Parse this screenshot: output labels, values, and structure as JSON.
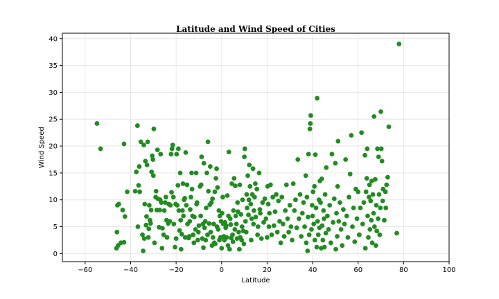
{
  "chart_data": {
    "type": "scatter",
    "title": "Latitude and Wind Speed of Cities",
    "xlabel": "Latitude",
    "ylabel": "Wind Speed",
    "xlim": [
      -70,
      100
    ],
    "ylim": [
      -1.5,
      41
    ],
    "xticks": [
      -60,
      -40,
      -20,
      0,
      20,
      40,
      60,
      80,
      100
    ],
    "yticks": [
      0,
      5,
      10,
      15,
      20,
      25,
      30,
      35,
      40
    ],
    "grid": true,
    "marker_color": "#228b22",
    "points": [
      [
        -54.8,
        24.2
      ],
      [
        -53.2,
        19.5
      ],
      [
        -46.2,
        1.0
      ],
      [
        -45.5,
        1.5
      ],
      [
        -46.0,
        4.0
      ],
      [
        -45.8,
        9.0
      ],
      [
        -45.2,
        9.2
      ],
      [
        -44.3,
        2.0
      ],
      [
        -43.5,
        8.1
      ],
      [
        -42.9,
        20.4
      ],
      [
        -42.5,
        6.9
      ],
      [
        -42.9,
        2.1
      ],
      [
        -41.5,
        11.5
      ],
      [
        -38.0,
        11.6
      ],
      [
        -37.5,
        15.2
      ],
      [
        -37.0,
        23.8
      ],
      [
        -36.8,
        5.0
      ],
      [
        -36.5,
        12.7
      ],
      [
        -36.2,
        16.2
      ],
      [
        -36.0,
        11.5
      ],
      [
        -35.5,
        20.8
      ],
      [
        -34.8,
        3.5
      ],
      [
        -34.5,
        0.5
      ],
      [
        -34.2,
        20.2
      ],
      [
        -34.0,
        2.8
      ],
      [
        -33.8,
        9.2
      ],
      [
        -33.5,
        17.2
      ],
      [
        -33.2,
        5.3
      ],
      [
        -33.0,
        6.9
      ],
      [
        -32.8,
        16.5
      ],
      [
        -32.5,
        20.8
      ],
      [
        -32.2,
        3.0
      ],
      [
        -32.0,
        4.6
      ],
      [
        -31.8,
        9.0
      ],
      [
        -31.5,
        6.2
      ],
      [
        -31.2,
        5.6
      ],
      [
        -31.0,
        8.1
      ],
      [
        -30.8,
        15.2
      ],
      [
        -30.5,
        18.2
      ],
      [
        -30.2,
        17.5
      ],
      [
        -30.0,
        14.5
      ],
      [
        -29.8,
        23.2
      ],
      [
        -29.5,
        2.0
      ],
      [
        -29.0,
        10.5
      ],
      [
        -28.8,
        11.6
      ],
      [
        -28.5,
        8.1
      ],
      [
        -28.2,
        19.3
      ],
      [
        -28.0,
        10.2
      ],
      [
        -27.5,
        4.9
      ],
      [
        -27.2,
        8.1
      ],
      [
        -27.0,
        10.0
      ],
      [
        -26.8,
        18.5
      ],
      [
        -26.5,
        9.5
      ],
      [
        -26.2,
        1.0
      ],
      [
        -26.0,
        4.7
      ],
      [
        -25.5,
        3.5
      ],
      [
        -25.2,
        8.0
      ],
      [
        -24.8,
        9.5
      ],
      [
        -24.5,
        10.5
      ],
      [
        -24.2,
        6.2
      ],
      [
        -24.0,
        3.0
      ],
      [
        -23.5,
        5.6
      ],
      [
        -23.2,
        9.2
      ],
      [
        -22.8,
        6.0
      ],
      [
        -22.5,
        9.0
      ],
      [
        -22.2,
        18.5
      ],
      [
        -22.0,
        11.4
      ],
      [
        -21.8,
        19.5
      ],
      [
        -21.5,
        20.2
      ],
      [
        -21.2,
        10.5
      ],
      [
        -21.0,
        5.5
      ],
      [
        -20.5,
        1.2
      ],
      [
        -20.2,
        9.2
      ],
      [
        -20.0,
        2.8
      ],
      [
        -19.8,
        18.5
      ],
      [
        -19.5,
        9.0
      ],
      [
        -19.2,
        12.7
      ],
      [
        -19.0,
        19.5
      ],
      [
        -18.8,
        8.0
      ],
      [
        -18.5,
        4.3
      ],
      [
        -18.2,
        15.0
      ],
      [
        -18.0,
        6.2
      ],
      [
        -17.8,
        0.8
      ],
      [
        -17.5,
        3.6
      ],
      [
        -17.2,
        8.0
      ],
      [
        -17.0,
        13.0
      ],
      [
        -16.8,
        7.0
      ],
      [
        -16.5,
        10.0
      ],
      [
        -16.2,
        10.3
      ],
      [
        -16.0,
        3.0
      ],
      [
        -15.8,
        18.8
      ],
      [
        -15.5,
        9.0
      ],
      [
        -15.2,
        12.8
      ],
      [
        -15.0,
        5.5
      ],
      [
        -14.5,
        2.9
      ],
      [
        -14.2,
        3.2
      ],
      [
        -14.0,
        6.0
      ],
      [
        -13.8,
        8.2
      ],
      [
        -13.5,
        10.5
      ],
      [
        -13.2,
        15.0
      ],
      [
        -13.0,
        12.0
      ],
      [
        -12.8,
        7.0
      ],
      [
        -12.5,
        3.5
      ],
      [
        -12.2,
        2.0
      ],
      [
        -12.0,
        6.8
      ],
      [
        -11.5,
        4.5
      ],
      [
        -11.2,
        15.0
      ],
      [
        -11.0,
        9.2
      ],
      [
        -10.8,
        9.5
      ],
      [
        -10.5,
        2.5
      ],
      [
        -10.2,
        4.0
      ],
      [
        -10.0,
        5.2
      ],
      [
        -9.5,
        12.5
      ],
      [
        -9.2,
        7.0
      ],
      [
        -9.0,
        12.8
      ],
      [
        -8.8,
        18.0
      ],
      [
        -8.5,
        2.8
      ],
      [
        -8.2,
        5.5
      ],
      [
        -8.0,
        1.1
      ],
      [
        -7.8,
        16.8
      ],
      [
        -7.5,
        4.8
      ],
      [
        -7.2,
        6.0
      ],
      [
        -7.0,
        2.5
      ],
      [
        -6.8,
        8.5
      ],
      [
        -6.5,
        15.0
      ],
      [
        -6.2,
        3.5
      ],
      [
        -6.0,
        20.8
      ],
      [
        -5.8,
        11.6
      ],
      [
        -5.5,
        5.6
      ],
      [
        -5.2,
        9.1
      ],
      [
        -5.0,
        16.2
      ],
      [
        -4.8,
        4.0
      ],
      [
        -4.5,
        9.5
      ],
      [
        -4.2,
        1.5
      ],
      [
        -4.0,
        10.2
      ],
      [
        -3.8,
        3.0
      ],
      [
        -3.5,
        5.5
      ],
      [
        -3.2,
        2.0
      ],
      [
        -3.0,
        11.5
      ],
      [
        -2.8,
        1.8
      ],
      [
        -2.5,
        14.0
      ],
      [
        -2.2,
        15.8
      ],
      [
        -2.0,
        5.0
      ],
      [
        -1.8,
        12.3
      ],
      [
        -1.5,
        4.5
      ],
      [
        -1.2,
        8.0
      ],
      [
        -1.0,
        2.5
      ],
      [
        -0.8,
        7.0
      ],
      [
        -0.5,
        3.0
      ],
      [
        -0.2,
        6.0
      ],
      [
        0.0,
        1.0
      ],
      [
        0.2,
        7.5
      ],
      [
        0.5,
        10.5
      ],
      [
        0.8,
        5.5
      ],
      [
        1.0,
        3.2
      ],
      [
        1.2,
        2.5
      ],
      [
        1.5,
        5.8
      ],
      [
        1.8,
        4.8
      ],
      [
        2.0,
        5.2
      ],
      [
        2.2,
        3.0
      ],
      [
        2.5,
        10.8
      ],
      [
        2.8,
        1.5
      ],
      [
        3.0,
        7.0
      ],
      [
        3.2,
        18.9
      ],
      [
        3.5,
        0.8
      ],
      [
        3.8,
        6.5
      ],
      [
        4.0,
        5.4
      ],
      [
        4.2,
        2.9
      ],
      [
        4.5,
        13.0
      ],
      [
        4.8,
        3.5
      ],
      [
        5.0,
        2.2
      ],
      [
        5.2,
        8.0
      ],
      [
        5.5,
        14.0
      ],
      [
        5.8,
        4.5
      ],
      [
        6.0,
        12.6
      ],
      [
        6.2,
        7.0
      ],
      [
        6.5,
        5.5
      ],
      [
        6.8,
        2.8
      ],
      [
        7.0,
        9.5
      ],
      [
        7.2,
        7.8
      ],
      [
        7.5,
        4.0
      ],
      [
        7.8,
        0.8
      ],
      [
        8.0,
        12.8
      ],
      [
        8.2,
        3.0
      ],
      [
        8.5,
        7.3
      ],
      [
        8.8,
        2.5
      ],
      [
        9.0,
        5.0
      ],
      [
        9.2,
        10.0
      ],
      [
        9.5,
        4.2
      ],
      [
        9.8,
        1.8
      ],
      [
        10.0,
        18.0
      ],
      [
        10.2,
        19.5
      ],
      [
        10.5,
        6.0
      ],
      [
        10.8,
        4.0
      ],
      [
        11.0,
        11.0
      ],
      [
        11.2,
        8.5
      ],
      [
        11.5,
        14.5
      ],
      [
        11.8,
        7.2
      ],
      [
        12.0,
        10.0
      ],
      [
        12.2,
        16.5
      ],
      [
        12.5,
        12.5
      ],
      [
        12.8,
        9.2
      ],
      [
        13.0,
        2.5
      ],
      [
        13.2,
        6.5
      ],
      [
        13.5,
        11.0
      ],
      [
        13.8,
        15.8
      ],
      [
        14.0,
        5.5
      ],
      [
        14.2,
        8.0
      ],
      [
        14.5,
        10.5
      ],
      [
        14.8,
        13.0
      ],
      [
        15.0,
        6.8
      ],
      [
        15.5,
        12.0
      ],
      [
        15.8,
        3.5
      ],
      [
        16.0,
        5.0
      ],
      [
        16.5,
        15.0
      ],
      [
        16.8,
        8.2
      ],
      [
        17.0,
        7.5
      ],
      [
        17.5,
        2.8
      ],
      [
        18.0,
        9.5
      ],
      [
        18.5,
        5.8
      ],
      [
        19.0,
        10.2
      ],
      [
        19.5,
        6.5
      ],
      [
        20.0,
        3.0
      ],
      [
        20.2,
        12.5
      ],
      [
        20.5,
        9.2
      ],
      [
        20.8,
        5.0
      ],
      [
        21.0,
        7.5
      ],
      [
        21.5,
        12.8
      ],
      [
        22.0,
        3.5
      ],
      [
        22.5,
        10.5
      ],
      [
        23.0,
        5.2
      ],
      [
        23.5,
        7.8
      ],
      [
        24.0,
        11.0
      ],
      [
        24.5,
        4.0
      ],
      [
        25.0,
        9.8
      ],
      [
        25.5,
        6.0
      ],
      [
        26.0,
        2.0
      ],
      [
        26.5,
        10.5
      ],
      [
        27.0,
        5.5
      ],
      [
        27.5,
        3.2
      ],
      [
        28.0,
        8.0
      ],
      [
        28.5,
        12.8
      ],
      [
        29.0,
        6.5
      ],
      [
        29.5,
        4.0
      ],
      [
        30.0,
        9.0
      ],
      [
        30.5,
        5.0
      ],
      [
        31.0,
        2.5
      ],
      [
        31.5,
        13.0
      ],
      [
        32.0,
        8.0
      ],
      [
        32.5,
        10.0
      ],
      [
        33.0,
        4.8
      ],
      [
        33.5,
        17.5
      ],
      [
        34.0,
        6.5
      ],
      [
        34.5,
        11.0
      ],
      [
        35.0,
        3.2
      ],
      [
        35.5,
        7.5
      ],
      [
        36.0,
        9.5
      ],
      [
        36.5,
        5.0
      ],
      [
        37.0,
        14.5
      ],
      [
        37.2,
        2.0
      ],
      [
        37.5,
        10.5
      ],
      [
        37.8,
        0.5
      ],
      [
        38.0,
        6.8
      ],
      [
        38.2,
        18.5
      ],
      [
        38.5,
        3.5
      ],
      [
        38.8,
        23.2
      ],
      [
        39.0,
        24.2
      ],
      [
        39.2,
        25.7
      ],
      [
        39.5,
        4.5
      ],
      [
        39.8,
        9.0
      ],
      [
        40.0,
        7.0
      ],
      [
        40.2,
        11.5
      ],
      [
        40.5,
        5.5
      ],
      [
        40.8,
        12.5
      ],
      [
        41.0,
        2.5
      ],
      [
        41.2,
        18.4
      ],
      [
        41.5,
        8.5
      ],
      [
        41.8,
        1.2
      ],
      [
        42.0,
        28.9
      ],
      [
        42.2,
        6.0
      ],
      [
        42.5,
        3.5
      ],
      [
        42.8,
        10.0
      ],
      [
        43.0,
        4.8
      ],
      [
        43.2,
        13.5
      ],
      [
        43.5,
        9.5
      ],
      [
        43.8,
        1.0
      ],
      [
        44.0,
        13.9
      ],
      [
        44.2,
        5.2
      ],
      [
        44.5,
        2.5
      ],
      [
        44.8,
        8.0
      ],
      [
        45.0,
        6.5
      ],
      [
        45.2,
        1.2
      ],
      [
        45.5,
        11.0
      ],
      [
        45.8,
        3.8
      ],
      [
        46.0,
        16.0
      ],
      [
        46.5,
        7.0
      ],
      [
        47.0,
        4.5
      ],
      [
        47.5,
        9.0
      ],
      [
        48.0,
        2.0
      ],
      [
        48.5,
        18.5
      ],
      [
        49.0,
        5.8
      ],
      [
        49.5,
        10.2
      ],
      [
        50.0,
        16.8
      ],
      [
        50.2,
        0.8
      ],
      [
        50.5,
        7.5
      ],
      [
        50.8,
        3.2
      ],
      [
        51.0,
        12.5
      ],
      [
        51.2,
        20.9
      ],
      [
        51.5,
        6.0
      ],
      [
        52.0,
        9.5
      ],
      [
        52.5,
        4.5
      ],
      [
        53.0,
        1.5
      ],
      [
        53.5,
        8.2
      ],
      [
        54.0,
        5.5
      ],
      [
        54.5,
        17.5
      ],
      [
        55.0,
        7.0
      ],
      [
        55.5,
        3.0
      ],
      [
        56.0,
        10.5
      ],
      [
        56.5,
        14.8
      ],
      [
        57.0,
        22.0
      ],
      [
        57.5,
        5.0
      ],
      [
        58.0,
        8.5
      ],
      [
        58.5,
        2.2
      ],
      [
        59.0,
        12.0
      ],
      [
        59.5,
        6.5
      ],
      [
        60.0,
        11.5
      ],
      [
        60.5,
        3.5
      ],
      [
        61.0,
        8.5
      ],
      [
        61.5,
        22.5
      ],
      [
        62.0,
        5.5
      ],
      [
        62.5,
        9.5
      ],
      [
        63.0,
        18.3
      ],
      [
        63.2,
        1.0
      ],
      [
        63.5,
        11.5
      ],
      [
        63.8,
        14.0
      ],
      [
        64.0,
        19.5
      ],
      [
        64.2,
        7.0
      ],
      [
        64.5,
        3.0
      ],
      [
        64.8,
        10.5
      ],
      [
        65.0,
        12.8
      ],
      [
        65.2,
        4.5
      ],
      [
        65.5,
        9.8
      ],
      [
        65.8,
        6.2
      ],
      [
        66.0,
        13.5
      ],
      [
        66.2,
        2.0
      ],
      [
        66.5,
        11.0
      ],
      [
        66.8,
        7.5
      ],
      [
        67.0,
        25.5
      ],
      [
        67.2,
        5.0
      ],
      [
        67.5,
        13.8
      ],
      [
        67.8,
        1.5
      ],
      [
        68.0,
        9.0
      ],
      [
        68.2,
        4.2
      ],
      [
        68.5,
        19.5
      ],
      [
        68.8,
        6.5
      ],
      [
        69.0,
        18.0
      ],
      [
        69.2,
        11.0
      ],
      [
        69.5,
        3.5
      ],
      [
        69.8,
        8.5
      ],
      [
        70.0,
        26.4
      ],
      [
        70.2,
        19.5
      ],
      [
        70.5,
        17.2
      ],
      [
        70.8,
        9.8
      ],
      [
        71.0,
        12.0
      ],
      [
        71.5,
        6.2
      ],
      [
        72.0,
        11.5
      ],
      [
        72.2,
        8.5
      ],
      [
        72.5,
        12.8
      ],
      [
        73.0,
        14.2
      ],
      [
        73.5,
        23.6
      ],
      [
        77.0,
        3.8
      ],
      [
        78.0,
        39.0
      ]
    ]
  }
}
